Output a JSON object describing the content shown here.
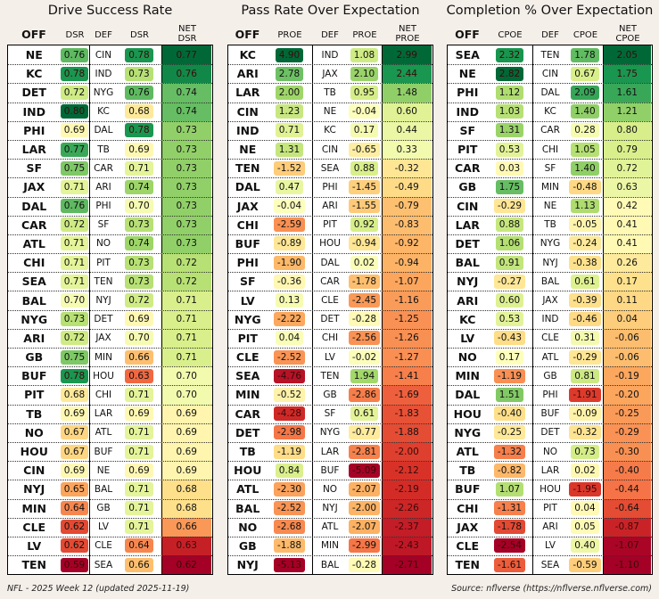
{
  "chart_data": [
    {
      "type": "table",
      "title": "Drive Success Rate",
      "headers": {
        "off": "OFF",
        "off_val": "DSR",
        "def": "DEF",
        "def_val": "DSR",
        "net": "NET\nDSR"
      },
      "rows": [
        {
          "off": "NE",
          "off_val": "0.76",
          "def": "CIN",
          "def_val": "0.78",
          "net": "0.77"
        },
        {
          "off": "KC",
          "off_val": "0.78",
          "def": "IND",
          "def_val": "0.73",
          "net": "0.76"
        },
        {
          "off": "DET",
          "off_val": "0.72",
          "def": "NYG",
          "def_val": "0.76",
          "net": "0.74"
        },
        {
          "off": "IND",
          "off_val": "0.80",
          "def": "KC",
          "def_val": "0.68",
          "net": "0.74"
        },
        {
          "off": "PHI",
          "off_val": "0.69",
          "def": "DAL",
          "def_val": "0.78",
          "net": "0.73"
        },
        {
          "off": "LAR",
          "off_val": "0.77",
          "def": "TB",
          "def_val": "0.69",
          "net": "0.73"
        },
        {
          "off": "SF",
          "off_val": "0.75",
          "def": "CAR",
          "def_val": "0.71",
          "net": "0.73"
        },
        {
          "off": "JAX",
          "off_val": "0.71",
          "def": "ARI",
          "def_val": "0.74",
          "net": "0.73"
        },
        {
          "off": "DAL",
          "off_val": "0.76",
          "def": "PHI",
          "def_val": "0.70",
          "net": "0.73"
        },
        {
          "off": "CAR",
          "off_val": "0.72",
          "def": "SF",
          "def_val": "0.73",
          "net": "0.73"
        },
        {
          "off": "ATL",
          "off_val": "0.71",
          "def": "NO",
          "def_val": "0.74",
          "net": "0.73"
        },
        {
          "off": "CHI",
          "off_val": "0.71",
          "def": "PIT",
          "def_val": "0.73",
          "net": "0.72"
        },
        {
          "off": "SEA",
          "off_val": "0.71",
          "def": "TEN",
          "def_val": "0.73",
          "net": "0.72"
        },
        {
          "off": "BAL",
          "off_val": "0.70",
          "def": "NYJ",
          "def_val": "0.72",
          "net": "0.71"
        },
        {
          "off": "NYG",
          "off_val": "0.73",
          "def": "DET",
          "def_val": "0.69",
          "net": "0.71"
        },
        {
          "off": "ARI",
          "off_val": "0.72",
          "def": "JAX",
          "def_val": "0.70",
          "net": "0.71"
        },
        {
          "off": "GB",
          "off_val": "0.75",
          "def": "MIN",
          "def_val": "0.66",
          "net": "0.71"
        },
        {
          "off": "BUF",
          "off_val": "0.78",
          "def": "HOU",
          "def_val": "0.63",
          "net": "0.70"
        },
        {
          "off": "PIT",
          "off_val": "0.68",
          "def": "CHI",
          "def_val": "0.71",
          "net": "0.70"
        },
        {
          "off": "TB",
          "off_val": "0.69",
          "def": "LAR",
          "def_val": "0.69",
          "net": "0.69"
        },
        {
          "off": "NO",
          "off_val": "0.67",
          "def": "ATL",
          "def_val": "0.71",
          "net": "0.69"
        },
        {
          "off": "HOU",
          "off_val": "0.67",
          "def": "BUF",
          "def_val": "0.71",
          "net": "0.69"
        },
        {
          "off": "CIN",
          "off_val": "0.69",
          "def": "NE",
          "def_val": "0.69",
          "net": "0.69"
        },
        {
          "off": "NYJ",
          "off_val": "0.65",
          "def": "BAL",
          "def_val": "0.71",
          "net": "0.68"
        },
        {
          "off": "MIN",
          "off_val": "0.64",
          "def": "GB",
          "def_val": "0.71",
          "net": "0.68"
        },
        {
          "off": "CLE",
          "off_val": "0.62",
          "def": "LV",
          "def_val": "0.71",
          "net": "0.66"
        },
        {
          "off": "LV",
          "off_val": "0.62",
          "def": "CLE",
          "def_val": "0.64",
          "net": "0.63"
        },
        {
          "off": "TEN",
          "off_val": "0.59",
          "def": "SEA",
          "def_val": "0.66",
          "net": "0.62"
        }
      ]
    },
    {
      "type": "table",
      "title": "Pass Rate Over Expectation",
      "headers": {
        "off": "OFF",
        "off_val": "PROE",
        "def": "DEF",
        "def_val": "PROE",
        "net": "NET\nPROE"
      },
      "rows": [
        {
          "off": "KC",
          "off_val": "4.90",
          "def": "IND",
          "def_val": "1.08",
          "net": "2.99"
        },
        {
          "off": "ARI",
          "off_val": "2.78",
          "def": "JAX",
          "def_val": "2.10",
          "net": "2.44"
        },
        {
          "off": "LAR",
          "off_val": "2.00",
          "def": "TB",
          "def_val": "0.95",
          "net": "1.48"
        },
        {
          "off": "CIN",
          "off_val": "1.23",
          "def": "NE",
          "def_val": "-0.04",
          "net": "0.60"
        },
        {
          "off": "IND",
          "off_val": "0.71",
          "def": "KC",
          "def_val": "0.17",
          "net": "0.44"
        },
        {
          "off": "NE",
          "off_val": "1.31",
          "def": "CIN",
          "def_val": "-0.65",
          "net": "0.33"
        },
        {
          "off": "TEN",
          "off_val": "-1.52",
          "def": "SEA",
          "def_val": "0.88",
          "net": "-0.32"
        },
        {
          "off": "DAL",
          "off_val": "0.47",
          "def": "PHI",
          "def_val": "-1.45",
          "net": "-0.49"
        },
        {
          "off": "JAX",
          "off_val": "-0.04",
          "def": "ARI",
          "def_val": "-1.55",
          "net": "-0.79"
        },
        {
          "off": "CHI",
          "off_val": "-2.59",
          "def": "PIT",
          "def_val": "0.92",
          "net": "-0.83"
        },
        {
          "off": "BUF",
          "off_val": "-0.89",
          "def": "HOU",
          "def_val": "-0.94",
          "net": "-0.92"
        },
        {
          "off": "PHI",
          "off_val": "-1.90",
          "def": "DAL",
          "def_val": "0.02",
          "net": "-0.94"
        },
        {
          "off": "SF",
          "off_val": "-0.36",
          "def": "CAR",
          "def_val": "-1.78",
          "net": "-1.07"
        },
        {
          "off": "LV",
          "off_val": "0.13",
          "def": "CLE",
          "def_val": "-2.45",
          "net": "-1.16"
        },
        {
          "off": "NYG",
          "off_val": "-2.22",
          "def": "DET",
          "def_val": "-0.28",
          "net": "-1.25"
        },
        {
          "off": "PIT",
          "off_val": "0.04",
          "def": "CHI",
          "def_val": "-2.56",
          "net": "-1.26"
        },
        {
          "off": "CLE",
          "off_val": "-2.52",
          "def": "LV",
          "def_val": "-0.02",
          "net": "-1.27"
        },
        {
          "off": "SEA",
          "off_val": "-4.76",
          "def": "TEN",
          "def_val": "1.94",
          "net": "-1.41"
        },
        {
          "off": "MIN",
          "off_val": "-0.52",
          "def": "GB",
          "def_val": "-2.86",
          "net": "-1.69"
        },
        {
          "off": "CAR",
          "off_val": "-4.28",
          "def": "SF",
          "def_val": "0.61",
          "net": "-1.83"
        },
        {
          "off": "DET",
          "off_val": "-2.98",
          "def": "NYG",
          "def_val": "-0.77",
          "net": "-1.88"
        },
        {
          "off": "TB",
          "off_val": "-1.19",
          "def": "LAR",
          "def_val": "-2.81",
          "net": "-2.00"
        },
        {
          "off": "HOU",
          "off_val": "0.84",
          "def": "BUF",
          "def_val": "-5.09",
          "net": "-2.12"
        },
        {
          "off": "ATL",
          "off_val": "-2.30",
          "def": "NO",
          "def_val": "-2.07",
          "net": "-2.19"
        },
        {
          "off": "BAL",
          "off_val": "-2.52",
          "def": "NYJ",
          "def_val": "-2.00",
          "net": "-2.26"
        },
        {
          "off": "NO",
          "off_val": "-2.68",
          "def": "ATL",
          "def_val": "-2.07",
          "net": "-2.37"
        },
        {
          "off": "GB",
          "off_val": "-1.88",
          "def": "MIN",
          "def_val": "-2.99",
          "net": "-2.43"
        },
        {
          "off": "NYJ",
          "off_val": "-5.13",
          "def": "BAL",
          "def_val": "-0.28",
          "net": "-2.71"
        }
      ]
    },
    {
      "type": "table",
      "title": "Completion % Over Expectation",
      "headers": {
        "off": "OFF",
        "off_val": "CPOE",
        "def": "DEF",
        "def_val": "CPOE",
        "net": "NET\nCPOE"
      },
      "rows": [
        {
          "off": "SEA",
          "off_val": "2.32",
          "def": "TEN",
          "def_val": "1.78",
          "net": "2.05"
        },
        {
          "off": "NE",
          "off_val": "2.82",
          "def": "CIN",
          "def_val": "0.67",
          "net": "1.75"
        },
        {
          "off": "PHI",
          "off_val": "1.12",
          "def": "DAL",
          "def_val": "2.09",
          "net": "1.61"
        },
        {
          "off": "IND",
          "off_val": "1.03",
          "def": "KC",
          "def_val": "1.40",
          "net": "1.21"
        },
        {
          "off": "SF",
          "off_val": "1.31",
          "def": "CAR",
          "def_val": "0.28",
          "net": "0.80"
        },
        {
          "off": "PIT",
          "off_val": "0.53",
          "def": "CHI",
          "def_val": "1.05",
          "net": "0.79"
        },
        {
          "off": "CAR",
          "off_val": "0.03",
          "def": "SF",
          "def_val": "1.40",
          "net": "0.72"
        },
        {
          "off": "GB",
          "off_val": "1.75",
          "def": "MIN",
          "def_val": "-0.48",
          "net": "0.63"
        },
        {
          "off": "CIN",
          "off_val": "-0.29",
          "def": "NE",
          "def_val": "1.13",
          "net": "0.42"
        },
        {
          "off": "LAR",
          "off_val": "0.88",
          "def": "TB",
          "def_val": "-0.05",
          "net": "0.41"
        },
        {
          "off": "DET",
          "off_val": "1.06",
          "def": "NYG",
          "def_val": "-0.24",
          "net": "0.41"
        },
        {
          "off": "BAL",
          "off_val": "0.91",
          "def": "NYJ",
          "def_val": "-0.38",
          "net": "0.26"
        },
        {
          "off": "NYJ",
          "off_val": "-0.27",
          "def": "BAL",
          "def_val": "0.61",
          "net": "0.17"
        },
        {
          "off": "ARI",
          "off_val": "0.60",
          "def": "JAX",
          "def_val": "-0.39",
          "net": "0.11"
        },
        {
          "off": "KC",
          "off_val": "0.53",
          "def": "IND",
          "def_val": "-0.46",
          "net": "0.04"
        },
        {
          "off": "LV",
          "off_val": "-0.43",
          "def": "CLE",
          "def_val": "0.31",
          "net": "-0.06"
        },
        {
          "off": "NO",
          "off_val": "0.17",
          "def": "ATL",
          "def_val": "-0.29",
          "net": "-0.06"
        },
        {
          "off": "MIN",
          "off_val": "-1.19",
          "def": "GB",
          "def_val": "0.81",
          "net": "-0.19"
        },
        {
          "off": "DAL",
          "off_val": "1.51",
          "def": "PHI",
          "def_val": "-1.91",
          "net": "-0.20"
        },
        {
          "off": "HOU",
          "off_val": "-0.40",
          "def": "BUF",
          "def_val": "-0.09",
          "net": "-0.25"
        },
        {
          "off": "NYG",
          "off_val": "-0.25",
          "def": "DET",
          "def_val": "-0.32",
          "net": "-0.29"
        },
        {
          "off": "ATL",
          "off_val": "-1.32",
          "def": "NO",
          "def_val": "0.73",
          "net": "-0.30"
        },
        {
          "off": "TB",
          "off_val": "-0.82",
          "def": "LAR",
          "def_val": "0.02",
          "net": "-0.40"
        },
        {
          "off": "BUF",
          "off_val": "1.07",
          "def": "HOU",
          "def_val": "-1.95",
          "net": "-0.44"
        },
        {
          "off": "CHI",
          "off_val": "-1.31",
          "def": "PIT",
          "def_val": "0.04",
          "net": "-0.64"
        },
        {
          "off": "JAX",
          "off_val": "-1.78",
          "def": "ARI",
          "def_val": "0.05",
          "net": "-0.87"
        },
        {
          "off": "CLE",
          "off_val": "-2.54",
          "def": "LV",
          "def_val": "0.40",
          "net": "-1.07"
        },
        {
          "off": "TEN",
          "off_val": "-1.61",
          "def": "SEA",
          "def_val": "-0.59",
          "net": "-1.10"
        }
      ]
    }
  ],
  "footer": {
    "left": "NFL - 2025 Week 12 (updated 2025-11-19)",
    "right": "Source: nflverse (https://nflverse.nflverse.com)"
  },
  "colormap": "RdYlGn"
}
